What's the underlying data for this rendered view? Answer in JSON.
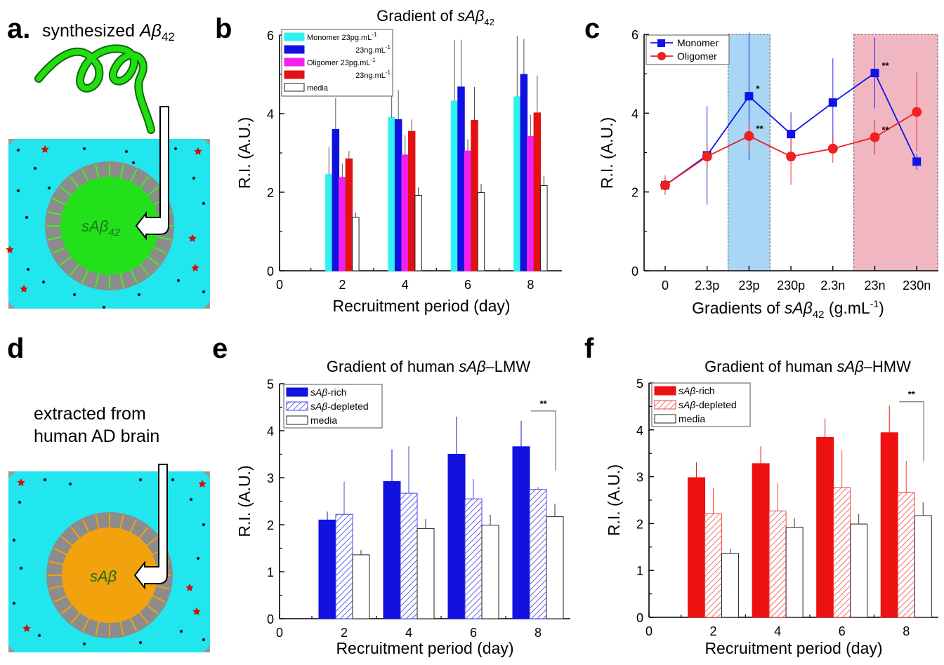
{
  "panel_labels": {
    "a": "a.",
    "b": "b",
    "c": "c",
    "d": "d",
    "e": "e",
    "f": "f"
  },
  "diagram_a": {
    "caption_prefix": "synthesized ",
    "caption_symbol": "Aβ",
    "caption_sub": "42",
    "core_label": "sAβ",
    "core_sub": "42",
    "colors": {
      "medium": "#22e6ee",
      "ring": "#8c8c8c",
      "core": "#22e01a",
      "spoke": "#44ee22",
      "peptide": "#22dd11",
      "dot": "#cc1111"
    }
  },
  "diagram_d": {
    "caption_line1": "extracted from",
    "caption_line2": "human AD brain",
    "core_label": "sAβ",
    "colors": {
      "medium": "#22e6ee",
      "ring": "#8c8c8c",
      "core": "#f2a20c",
      "spoke": "#f2a20c",
      "dot": "#cc1111"
    }
  },
  "chart_data": [
    {
      "id": "b",
      "type": "bar",
      "title": "Gradient of sAβ42",
      "title_parts": [
        "Gradient of ",
        "sAβ",
        "42"
      ],
      "xlabel": "Recruitment period (day)",
      "ylabel": "R.I. (A.U.)",
      "xlim": [
        0,
        9
      ],
      "ylim": [
        0,
        6
      ],
      "xticks": [
        0,
        2,
        4,
        6,
        8
      ],
      "yticks": [
        0,
        2,
        4,
        6
      ],
      "categories": [
        2,
        4,
        6,
        8
      ],
      "legend_position": "top-left",
      "series": [
        {
          "name": "Monomer 23pg.mL",
          "sup": "-1",
          "color": "#2ef2f2",
          "hatch": false,
          "values": [
            2.45,
            3.9,
            4.32,
            4.43
          ],
          "errors": [
            0.7,
            0.9,
            1.55,
            1.55
          ]
        },
        {
          "name": "23ng.mL",
          "sup": "-1",
          "color": "#1010e0",
          "hatch": false,
          "values": [
            3.6,
            3.85,
            4.68,
            5.0
          ],
          "errors": [
            0.8,
            0.75,
            1.2,
            0.9
          ]
        },
        {
          "name": "Oligomer 23pg.mL",
          "sup": "-1",
          "color": "#f020f0",
          "hatch": false,
          "values": [
            2.38,
            2.95,
            3.05,
            3.42
          ],
          "errors": [
            0.35,
            0.5,
            0.3,
            0.55
          ]
        },
        {
          "name": "23ng.mL",
          "sup": "-1",
          "color": "#e21212",
          "hatch": false,
          "values": [
            2.85,
            3.55,
            3.83,
            4.02
          ],
          "errors": [
            0.2,
            0.3,
            0.85,
            0.95
          ]
        },
        {
          "name": "media",
          "sup": "",
          "color": "#ffffff",
          "hatch": false,
          "values": [
            1.36,
            1.92,
            1.99,
            2.17
          ],
          "errors": [
            0.12,
            0.2,
            0.22,
            0.25
          ]
        }
      ]
    },
    {
      "id": "c",
      "type": "line",
      "title": "",
      "xlabel_parts": [
        "Gradients of ",
        "sAβ",
        "42",
        " (g.mL",
        "-1",
        ")"
      ],
      "xlabel": "Gradients of sAβ42 (g.mL-1)",
      "ylabel": "R.I. (A.U.)",
      "ylim": [
        0,
        6
      ],
      "yticks": [
        0,
        2,
        4,
        6
      ],
      "categories": [
        "0",
        "2.3p",
        "23p",
        "230p",
        "2.3n",
        "23n",
        "230n"
      ],
      "legend_position": "top-left",
      "shaded_regions": [
        {
          "from": 1.5,
          "to": 2.5,
          "color": "#a9d6f5"
        },
        {
          "from": 4.5,
          "to": 6.5,
          "color": "#f0b6c2"
        }
      ],
      "series": [
        {
          "name": "Monomer",
          "color": "#1111ee",
          "marker": "square",
          "values": [
            2.17,
            2.93,
            4.43,
            3.47,
            4.27,
            5.02,
            2.77
          ],
          "errors": [
            0.2,
            1.25,
            1.62,
            0.55,
            1.12,
            0.9,
            0.2
          ]
        },
        {
          "name": "Oligomer",
          "color": "#ee2020",
          "marker": "circle",
          "values": [
            2.17,
            2.9,
            3.42,
            2.9,
            3.1,
            3.39,
            4.03
          ],
          "errors": [
            0.25,
            0.3,
            0.4,
            0.72,
            0.36,
            0.45,
            1.0
          ]
        }
      ],
      "annotations": [
        {
          "text": "*",
          "x": 2,
          "y": 4.43
        },
        {
          "text": "**",
          "x": 2,
          "y": 3.42
        },
        {
          "text": "**",
          "x": 5,
          "y": 5.02
        },
        {
          "text": "**",
          "x": 5,
          "y": 3.39
        }
      ]
    },
    {
      "id": "e",
      "type": "bar",
      "title": "Gradient of human sAβ–LMW",
      "title_parts": [
        "Gradient of human ",
        "sAβ",
        "–LMW"
      ],
      "xlabel": "Recruitment period (day)",
      "ylabel": "R.I. (A.U.)",
      "xlim": [
        0,
        9
      ],
      "ylim": [
        0,
        5
      ],
      "xticks": [
        0,
        2,
        4,
        6,
        8
      ],
      "yticks": [
        0,
        1,
        2,
        3,
        4,
        5
      ],
      "categories": [
        2,
        4,
        6,
        8
      ],
      "legend_position": "top-left",
      "series": [
        {
          "name_parts": [
            "sAβ",
            "-rich"
          ],
          "color": "#1111e0",
          "hatch": false,
          "values": [
            2.1,
            2.92,
            3.5,
            3.66
          ],
          "errors": [
            0.18,
            0.68,
            0.8,
            0.55
          ]
        },
        {
          "name_parts": [
            "sAβ",
            "-depleted"
          ],
          "color": "#4444e6",
          "hatch": true,
          "values": [
            2.22,
            2.67,
            2.55,
            2.75
          ],
          "errors": [
            0.7,
            1.0,
            0.42,
            0.05
          ]
        },
        {
          "name_parts": [
            "media",
            ""
          ],
          "color": "#ffffff",
          "hatch": false,
          "values": [
            1.36,
            1.92,
            1.99,
            2.17
          ],
          "errors": [
            0.1,
            0.2,
            0.22,
            0.28
          ]
        }
      ],
      "annotations": [
        {
          "text": "**",
          "from": 8,
          "to": 8.5,
          "y": 4.42
        }
      ]
    },
    {
      "id": "f",
      "type": "bar",
      "title": "Gradient of human sAβ–HMW",
      "title_parts": [
        "Gradient of human ",
        "sAβ",
        "–HMW"
      ],
      "xlabel": "Recruitment period (day)",
      "ylabel": "R.I. (A.U.)",
      "xlim": [
        0,
        9
      ],
      "ylim": [
        0,
        5
      ],
      "xticks": [
        0,
        2,
        4,
        6,
        8
      ],
      "yticks": [
        0,
        1,
        2,
        3,
        4,
        5
      ],
      "categories": [
        2,
        4,
        6,
        8
      ],
      "legend_position": "top-left",
      "series": [
        {
          "name_parts": [
            "sAβ",
            "-rich"
          ],
          "color": "#ee1111",
          "hatch": false,
          "values": [
            2.98,
            3.28,
            3.84,
            3.94
          ],
          "errors": [
            0.33,
            0.37,
            0.4,
            0.58
          ]
        },
        {
          "name_parts": [
            "sAβ",
            "-depleted"
          ],
          "color": "#ee4444",
          "hatch": true,
          "values": [
            2.21,
            2.27,
            2.77,
            2.66
          ],
          "errors": [
            0.55,
            0.6,
            0.8,
            0.68
          ]
        },
        {
          "name_parts": [
            "media",
            ""
          ],
          "color": "#ffffff",
          "hatch": false,
          "values": [
            1.36,
            1.92,
            1.99,
            2.17
          ],
          "errors": [
            0.1,
            0.2,
            0.22,
            0.28
          ]
        }
      ],
      "annotations": [
        {
          "text": "**",
          "from": 8,
          "to": 8.5,
          "y": 4.6
        }
      ]
    }
  ]
}
